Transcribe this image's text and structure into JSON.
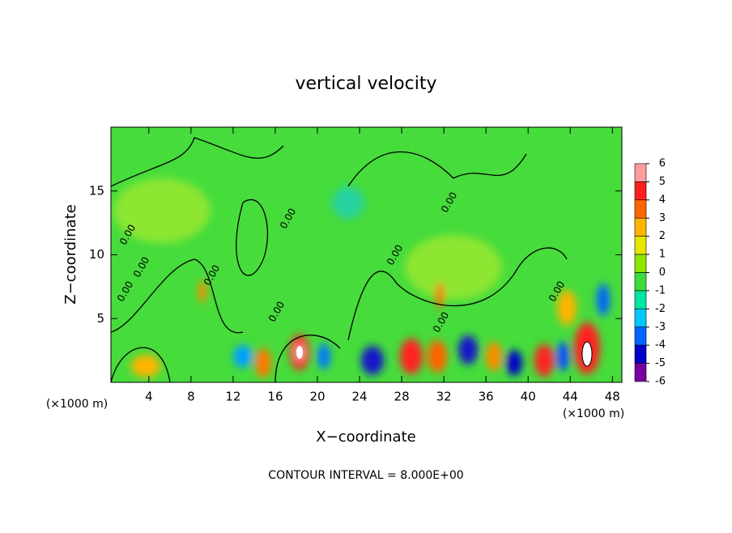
{
  "chart_data": {
    "type": "contour",
    "title": "vertical velocity",
    "x_label": "X−coordinate",
    "y_label": "Z−coordinate",
    "x_unit": "(×1000 m)",
    "x_unit_right": "(×1000 m)",
    "footer": "CONTOUR INTERVAL = 8.000E+00",
    "xlim": [
      0.4,
      48.9
    ],
    "xticks": [
      4,
      8,
      12,
      16,
      20,
      24,
      28,
      32,
      36,
      40,
      44,
      48
    ],
    "ylim": [
      0,
      20
    ],
    "yticks": [
      5,
      10,
      15
    ],
    "contour_labels": [
      "0.00",
      "0.00",
      "0.00",
      "0.00",
      "0.00",
      "0.00",
      "0.00",
      "0.00",
      "0.00",
      "0.00"
    ],
    "colorbar": {
      "ticks": [
        6,
        5,
        4,
        3,
        2,
        1,
        0,
        -1,
        -2,
        -3,
        -4,
        -5,
        -6
      ],
      "colors": [
        "#ff9c9c",
        "#ff1e1e",
        "#ff6400",
        "#ffb400",
        "#e6e600",
        "#8ce600",
        "#3cdc3c",
        "#00e6a0",
        "#00c8ff",
        "#0064ff",
        "#0000c8",
        "#7800a0"
      ]
    }
  }
}
